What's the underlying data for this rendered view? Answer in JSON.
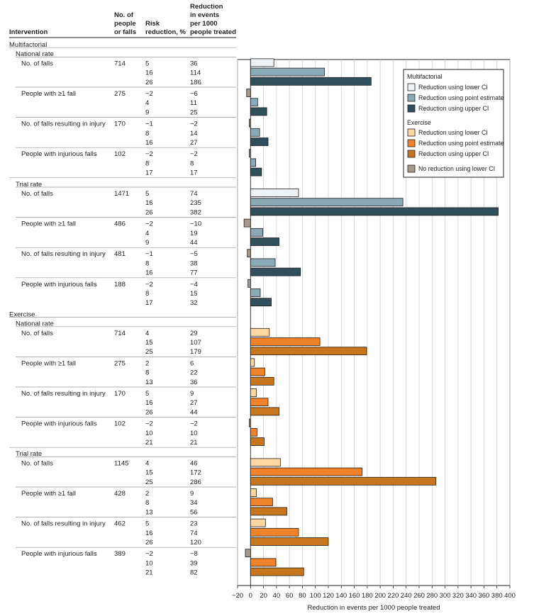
{
  "table_headers": {
    "intervention": "Intervention",
    "n_line1": "No. of",
    "n_line2": "people",
    "n_line3": "or falls",
    "rr_line1": "Risk",
    "rr_line2": "reduction, %",
    "red_line1": "Reduction",
    "red_line2": "in events",
    "red_line3": "per 1000",
    "red_line4": "people treated"
  },
  "legend": {
    "multi_title": "Multifactorial",
    "multi_lower": "Reduction using lower CI",
    "multi_point": "Reduction using point estimate",
    "multi_upper": "Reduction using upper CI",
    "ex_title": "Exercise",
    "ex_lower": "Reduction using lower CI",
    "ex_point": "Reduction using point estimate",
    "ex_upper": "Reduction using upper CI",
    "no_reduction": "No reduction using lower CI"
  },
  "colors": {
    "multi_lower": "#eef2f4",
    "multi_point": "#8aa9b6",
    "multi_upper": "#2f4f5a",
    "ex_lower": "#fcd7a0",
    "ex_point": "#f0822a",
    "ex_upper": "#c8761e",
    "no_reduction": "#a69a8d",
    "grid": "#cfcfcf",
    "separator": "#9a9a9a"
  },
  "chart_data": {
    "type": "bar",
    "orientation": "horizontal",
    "xlabel": "Reduction in events per 1000 people treated",
    "xlim": [
      -20,
      400
    ],
    "xticks": [
      -20,
      0,
      20,
      40,
      60,
      80,
      100,
      120,
      140,
      160,
      180,
      200,
      220,
      240,
      260,
      280,
      300,
      320,
      340,
      360,
      380,
      400
    ],
    "grid": true,
    "legend_position": "top-right",
    "groups": [
      {
        "label": "Multifactorial",
        "key": "multi",
        "subgroups": [
          {
            "label": "National rate",
            "outcomes": [
              {
                "label": "No. of falls",
                "n": "714",
                "risk_reduction": [
                  5,
                  16,
                  26
                ],
                "reduction": [
                  36,
                  114,
                  186
                ]
              },
              {
                "label": "People with ≥1 fall",
                "n": "275",
                "risk_reduction": [
                  -2,
                  4,
                  9
                ],
                "reduction": [
                  -6,
                  11,
                  25
                ]
              },
              {
                "label": "No. of falls resulting in injury",
                "n": "170",
                "risk_reduction": [
                  -1,
                  8,
                  16
                ],
                "reduction": [
                  -2,
                  14,
                  27
                ]
              },
              {
                "label": "People with injurious falls",
                "n": "102",
                "risk_reduction": [
                  -2,
                  8,
                  17
                ],
                "reduction": [
                  -2,
                  8,
                  17
                ]
              }
            ]
          },
          {
            "label": "Trial rate",
            "outcomes": [
              {
                "label": "No. of falls",
                "n": "1471",
                "risk_reduction": [
                  5,
                  16,
                  26
                ],
                "reduction": [
                  74,
                  235,
                  382
                ]
              },
              {
                "label": "People with ≥1 fall",
                "n": "486",
                "risk_reduction": [
                  -2,
                  4,
                  9
                ],
                "reduction": [
                  -10,
                  19,
                  44
                ]
              },
              {
                "label": "No. of falls resulting in injury",
                "n": "481",
                "risk_reduction": [
                  -1,
                  8,
                  16
                ],
                "reduction": [
                  -5,
                  38,
                  77
                ]
              },
              {
                "label": "People with injurious falls",
                "n": "188",
                "risk_reduction": [
                  -2,
                  8,
                  17
                ],
                "reduction": [
                  -4,
                  15,
                  32
                ]
              }
            ]
          }
        ]
      },
      {
        "label": "Exercise",
        "key": "ex",
        "subgroups": [
          {
            "label": "National rate",
            "outcomes": [
              {
                "label": "No. of falls",
                "n": "714",
                "risk_reduction": [
                  4,
                  15,
                  25
                ],
                "reduction": [
                  29,
                  107,
                  179
                ]
              },
              {
                "label": "People with ≥1 fall",
                "n": "275",
                "risk_reduction": [
                  2,
                  8,
                  13
                ],
                "reduction": [
                  6,
                  22,
                  36
                ]
              },
              {
                "label": "No. of falls resulting in injury",
                "n": "170",
                "risk_reduction": [
                  5,
                  16,
                  26
                ],
                "reduction": [
                  9,
                  27,
                  44
                ]
              },
              {
                "label": "People with injurious falls",
                "n": "102",
                "risk_reduction": [
                  -2,
                  10,
                  21
                ],
                "reduction": [
                  -2,
                  10,
                  21
                ]
              }
            ]
          },
          {
            "label": "Trial rate",
            "outcomes": [
              {
                "label": "No. of falls",
                "n": "1145",
                "risk_reduction": [
                  4,
                  15,
                  25
                ],
                "reduction": [
                  46,
                  172,
                  286
                ]
              },
              {
                "label": "People with ≥1 fall",
                "n": "428",
                "risk_reduction": [
                  2,
                  8,
                  13
                ],
                "reduction": [
                  9,
                  34,
                  56
                ]
              },
              {
                "label": "No. of falls resulting in injury",
                "n": "462",
                "risk_reduction": [
                  5,
                  16,
                  26
                ],
                "reduction": [
                  23,
                  74,
                  120
                ]
              },
              {
                "label": "People with injurious falls",
                "n": "389",
                "risk_reduction": [
                  -2,
                  10,
                  21
                ],
                "reduction": [
                  -8,
                  39,
                  82
                ]
              }
            ]
          }
        ]
      }
    ]
  }
}
